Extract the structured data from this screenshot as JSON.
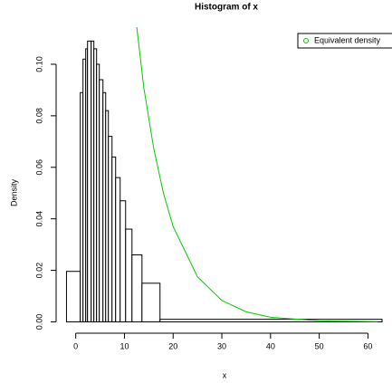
{
  "chart_data": {
    "type": "histogram",
    "title": "Histogram of x",
    "xlabel": "x",
    "ylabel": "Density",
    "bins": [
      -1.9,
      0.93,
      1.49,
      2.05,
      2.42,
      3.17,
      3.72,
      4.28,
      4.84,
      5.59,
      6.15,
      6.7,
      7.45,
      8.19,
      9.12,
      10.24,
      11.55,
      13.6,
      17.3,
      62.9
    ],
    "values": [
      0.0196,
      0.089,
      0.102,
      0.106,
      0.109,
      0.109,
      0.106,
      0.1,
      0.094,
      0.089,
      0.082,
      0.072,
      0.064,
      0.056,
      0.047,
      0.036,
      0.026,
      0.015,
      0.001
    ],
    "color": "#ffffff",
    "xlim": [
      -4.4,
      65.5
    ],
    "ylim": [
      -0.0044,
      0.1144
    ],
    "xticks": [
      0,
      10,
      20,
      30,
      40,
      50,
      60
    ],
    "yticks": [
      {
        "value": 0,
        "label": "0.00"
      },
      {
        "value": 0.02,
        "label": "0.02"
      },
      {
        "value": 0.04,
        "label": "0.04"
      },
      {
        "value": 0.06,
        "label": "0.06"
      },
      {
        "value": 0.08,
        "label": "0.08"
      },
      {
        "value": 0.1,
        "label": "0.10"
      }
    ],
    "overlay": {
      "type": "line",
      "name": "Equivalent density",
      "color": "#00cc00",
      "x": [
        12,
        14,
        16,
        18,
        20,
        25,
        30,
        35,
        40,
        50,
        62
      ],
      "values": [
        0.123,
        0.0906,
        0.0675,
        0.05,
        0.037,
        0.0175,
        0.0083,
        0.0039,
        0.0018,
        0.0004,
        7e-05
      ]
    },
    "legend": "topright"
  }
}
